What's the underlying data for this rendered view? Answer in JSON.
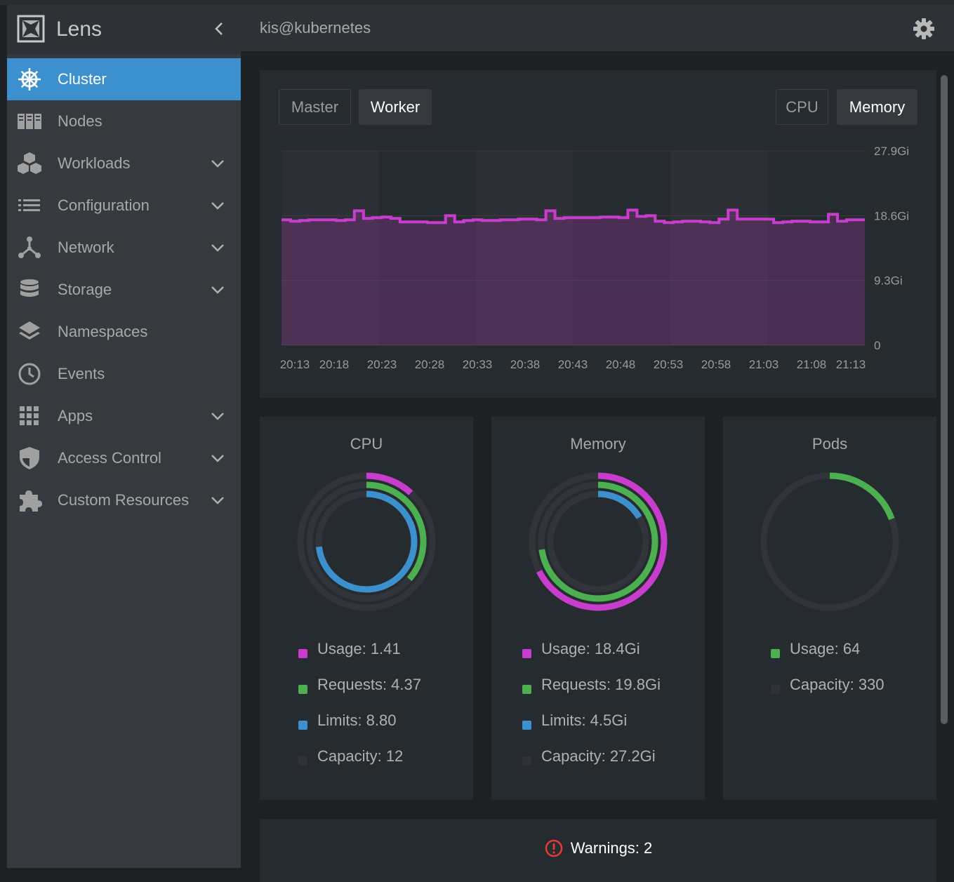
{
  "app": {
    "name": "Lens",
    "context": "kis@kubernetes"
  },
  "sidebar": {
    "items": [
      {
        "label": "Cluster",
        "icon": "helm-wheel-icon",
        "active": true,
        "expandable": false
      },
      {
        "label": "Nodes",
        "icon": "server-rack-icon",
        "active": false,
        "expandable": false
      },
      {
        "label": "Workloads",
        "icon": "cubes-icon",
        "active": false,
        "expandable": true
      },
      {
        "label": "Configuration",
        "icon": "list-icon",
        "active": false,
        "expandable": true
      },
      {
        "label": "Network",
        "icon": "network-icon",
        "active": false,
        "expandable": true
      },
      {
        "label": "Storage",
        "icon": "database-icon",
        "active": false,
        "expandable": true
      },
      {
        "label": "Namespaces",
        "icon": "layers-icon",
        "active": false,
        "expandable": false
      },
      {
        "label": "Events",
        "icon": "clock-icon",
        "active": false,
        "expandable": false
      },
      {
        "label": "Apps",
        "icon": "grid-icon",
        "active": false,
        "expandable": true
      },
      {
        "label": "Access Control",
        "icon": "shield-icon",
        "active": false,
        "expandable": true
      },
      {
        "label": "Custom Resources",
        "icon": "puzzle-icon",
        "active": false,
        "expandable": true
      }
    ]
  },
  "chart_panel": {
    "node_tabs": [
      {
        "label": "Master",
        "selected": false
      },
      {
        "label": "Worker",
        "selected": true
      }
    ],
    "metric_tabs": [
      {
        "label": "CPU",
        "selected": false
      },
      {
        "label": "Memory",
        "selected": true
      }
    ]
  },
  "chart_data": {
    "type": "area",
    "title": "",
    "xlabel": "",
    "ylabel": "",
    "y_ticks": [
      "27.9Gi",
      "18.6Gi",
      "9.3Gi",
      "0"
    ],
    "x_ticks": [
      "20:13",
      "20:18",
      "20:23",
      "20:28",
      "20:33",
      "20:38",
      "20:43",
      "20:48",
      "20:53",
      "20:58",
      "21:03",
      "21:08",
      "21:13"
    ],
    "ylim": [
      0,
      27.9
    ],
    "series": [
      {
        "color": "#c93dce",
        "values": [
          18.0,
          17.8,
          17.9,
          18.0,
          18.0,
          18.0,
          17.9,
          18.0,
          19.3,
          18.2,
          18.3,
          18.4,
          18.2,
          17.7,
          17.7,
          17.7,
          17.6,
          17.6,
          18.6,
          17.7,
          17.9,
          18.0,
          17.9,
          17.9,
          18.0,
          18.0,
          18.1,
          18.1,
          18.0,
          19.3,
          18.2,
          18.3,
          18.3,
          18.3,
          18.3,
          18.4,
          18.4,
          18.3,
          19.4,
          18.5,
          18.6,
          17.8,
          17.6,
          17.7,
          17.8,
          17.8,
          17.7,
          17.6,
          18.1,
          19.4,
          18.1,
          18.1,
          18.1,
          18.1,
          17.6,
          17.7,
          17.8,
          17.8,
          17.7,
          17.7,
          18.8,
          17.8,
          18.0,
          18.0
        ]
      }
    ],
    "grid": true
  },
  "cards": [
    {
      "title": "CPU",
      "legend": [
        {
          "label": "Usage: 1.41",
          "color": "#c93dce"
        },
        {
          "label": "Requests: 4.37",
          "color": "#4caf50"
        },
        {
          "label": "Limits: 8.80",
          "color": "#3d90ce"
        },
        {
          "label": "Capacity: 12",
          "color": "#2f3338"
        }
      ],
      "rings": [
        {
          "color": "#c93dce",
          "fraction": 0.1175
        },
        {
          "color": "#4caf50",
          "fraction": 0.364
        },
        {
          "color": "#3d90ce",
          "fraction": 0.733
        }
      ]
    },
    {
      "title": "Memory",
      "legend": [
        {
          "label": "Usage: 18.4Gi",
          "color": "#c93dce"
        },
        {
          "label": "Requests: 19.8Gi",
          "color": "#4caf50"
        },
        {
          "label": "Limits: 4.5Gi",
          "color": "#3d90ce"
        },
        {
          "label": "Capacity: 27.2Gi",
          "color": "#2f3338"
        }
      ],
      "rings": [
        {
          "color": "#c93dce",
          "fraction": 0.676
        },
        {
          "color": "#4caf50",
          "fraction": 0.728
        },
        {
          "color": "#3d90ce",
          "fraction": 0.165
        }
      ]
    },
    {
      "title": "Pods",
      "legend": [
        {
          "label": "Usage: 64",
          "color": "#4caf50"
        },
        {
          "label": "Capacity: 330",
          "color": "#2f3338"
        }
      ],
      "rings": [
        {
          "color": "#4caf50",
          "fraction": 0.194
        }
      ]
    }
  ],
  "warnings": {
    "label": "Warnings: 2"
  }
}
